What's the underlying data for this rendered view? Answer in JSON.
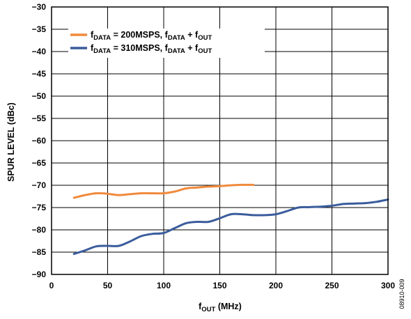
{
  "chart_data": {
    "type": "line",
    "xlabel": {
      "main": "f",
      "sub": "OUT",
      "rest": " (MHz)"
    },
    "ylabel": "SPUR LEVEL (dBc)",
    "xlim": [
      0,
      300
    ],
    "ylim": [
      -90,
      -30
    ],
    "xticks": [
      0,
      50,
      100,
      150,
      200,
      250,
      300
    ],
    "yticks": [
      -30,
      -35,
      -40,
      -45,
      -50,
      -55,
      -60,
      -65,
      -70,
      -75,
      -80,
      -85,
      -90
    ],
    "x_tick_labels": [
      "0",
      "50",
      "100",
      "150",
      "200",
      "250",
      "300"
    ],
    "y_tick_labels": [
      "−30",
      "−35",
      "−40",
      "−45",
      "−50",
      "−55",
      "−60",
      "−65",
      "−70",
      "−75",
      "−80",
      "−85",
      "−90"
    ],
    "grid": true,
    "legend_position": "top-left",
    "series": [
      {
        "legend": {
          "f1": "f",
          "s1": "DATA",
          "mid": " = 200MSPS, ",
          "f2": "f",
          "s2": "DATA",
          "plus": " + ",
          "f3": "f",
          "s3": "OUT"
        },
        "color": "#F08A3C",
        "x": [
          20,
          30,
          40,
          50,
          60,
          70,
          80,
          90,
          100,
          110,
          120,
          130,
          140,
          150,
          160,
          170,
          180
        ],
        "y": [
          -72.8,
          -72.2,
          -71.8,
          -71.9,
          -72.2,
          -72.0,
          -71.8,
          -71.8,
          -71.8,
          -71.4,
          -70.7,
          -70.5,
          -70.3,
          -70.2,
          -70.0,
          -69.9,
          -69.9
        ]
      },
      {
        "legend": {
          "f1": "f",
          "s1": "DATA",
          "mid": " = 310MSPS, ",
          "f2": "f",
          "s2": "DATA",
          "plus": " + ",
          "f3": "f",
          "s3": "OUT"
        },
        "color": "#3A5C9C",
        "x": [
          20,
          30,
          40,
          50,
          60,
          70,
          80,
          90,
          100,
          110,
          120,
          130,
          140,
          150,
          160,
          170,
          180,
          190,
          200,
          210,
          220,
          230,
          240,
          250,
          260,
          270,
          280,
          290,
          300
        ],
        "y": [
          -85.4,
          -84.6,
          -83.7,
          -83.6,
          -83.6,
          -82.6,
          -81.4,
          -80.9,
          -80.7,
          -79.6,
          -78.5,
          -78.2,
          -78.2,
          -77.4,
          -76.5,
          -76.5,
          -76.7,
          -76.7,
          -76.5,
          -75.8,
          -75.0,
          -74.9,
          -74.8,
          -74.6,
          -74.2,
          -74.1,
          -74.0,
          -73.7,
          -73.2
        ]
      }
    ]
  },
  "figure_id": "08910-009"
}
